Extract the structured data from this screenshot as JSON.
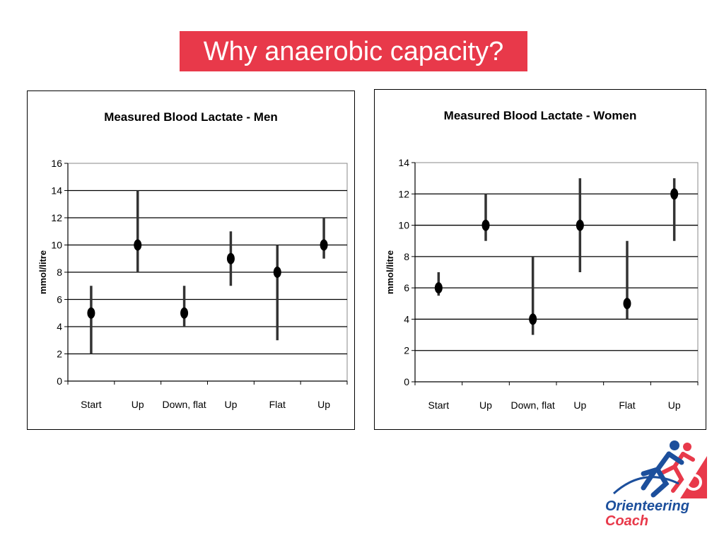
{
  "slide": {
    "title": "Why anaerobic capacity?",
    "title_bg": "#e8394a"
  },
  "chart_data": [
    {
      "type": "scatter",
      "title": "Measured Blood Lactate - Men",
      "ylabel": "mmol/litre",
      "categories": [
        "Start",
        "Up",
        "Down, flat",
        "Up",
        "Flat",
        "Up"
      ],
      "ylim": [
        0,
        16
      ],
      "yticks": [
        0,
        2,
        4,
        6,
        8,
        10,
        12,
        14,
        16
      ],
      "grid": true,
      "series": [
        {
          "values": [
            5,
            10,
            5,
            9,
            8,
            10
          ],
          "low": [
            2,
            8,
            4,
            7,
            3,
            9
          ],
          "high": [
            7,
            14,
            7,
            11,
            10,
            12
          ]
        }
      ]
    },
    {
      "type": "scatter",
      "title": "Measured Blood Lactate - Women",
      "ylabel": "mmol/litre",
      "categories": [
        "Start",
        "Up",
        "Down, flat",
        "Up",
        "Flat",
        "Up"
      ],
      "ylim": [
        0,
        14
      ],
      "yticks": [
        0,
        2,
        4,
        6,
        8,
        10,
        12,
        14
      ],
      "grid": true,
      "series": [
        {
          "values": [
            6,
            10,
            4,
            10,
            5,
            12
          ],
          "low": [
            5.5,
            9,
            3,
            7,
            4,
            9
          ],
          "high": [
            7,
            12,
            8,
            13,
            9,
            13
          ]
        }
      ]
    }
  ],
  "logo": {
    "line1": "Orienteering",
    "line2": "Coach",
    "colors": {
      "blue": "#1c4f9c",
      "red": "#e8394a"
    }
  }
}
